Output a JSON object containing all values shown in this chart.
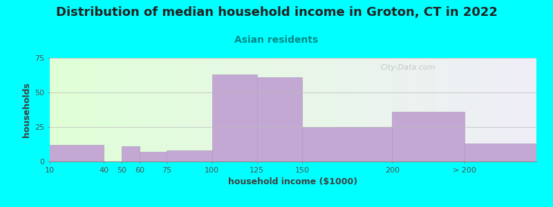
{
  "title": "Distribution of median household income in Groton, CT in 2022",
  "subtitle": "Asian residents",
  "xlabel": "household income ($1000)",
  "ylabel": "households",
  "background_outer": "#00FFFF",
  "bar_color": "#C4A8D4",
  "bar_edge_color": "#B09BC0",
  "plot_bg_left": "#DFFFD6",
  "plot_bg_right": "#F0EEF8",
  "watermark": "City-Data.com",
  "title_fontsize": 13,
  "subtitle_fontsize": 10,
  "label_fontsize": 9,
  "tick_fontsize": 8,
  "bin_edges": [
    10,
    40,
    50,
    60,
    75,
    100,
    125,
    150,
    200,
    240,
    280
  ],
  "bin_labels": [
    "10",
    "40",
    "50",
    "60",
    "75",
    "100",
    "125",
    "150",
    "200",
    "> 200"
  ],
  "values": [
    12,
    0,
    11,
    7,
    8,
    63,
    61,
    25,
    36,
    13
  ],
  "ylim": [
    0,
    75
  ],
  "yticks": [
    0,
    25,
    50,
    75
  ]
}
